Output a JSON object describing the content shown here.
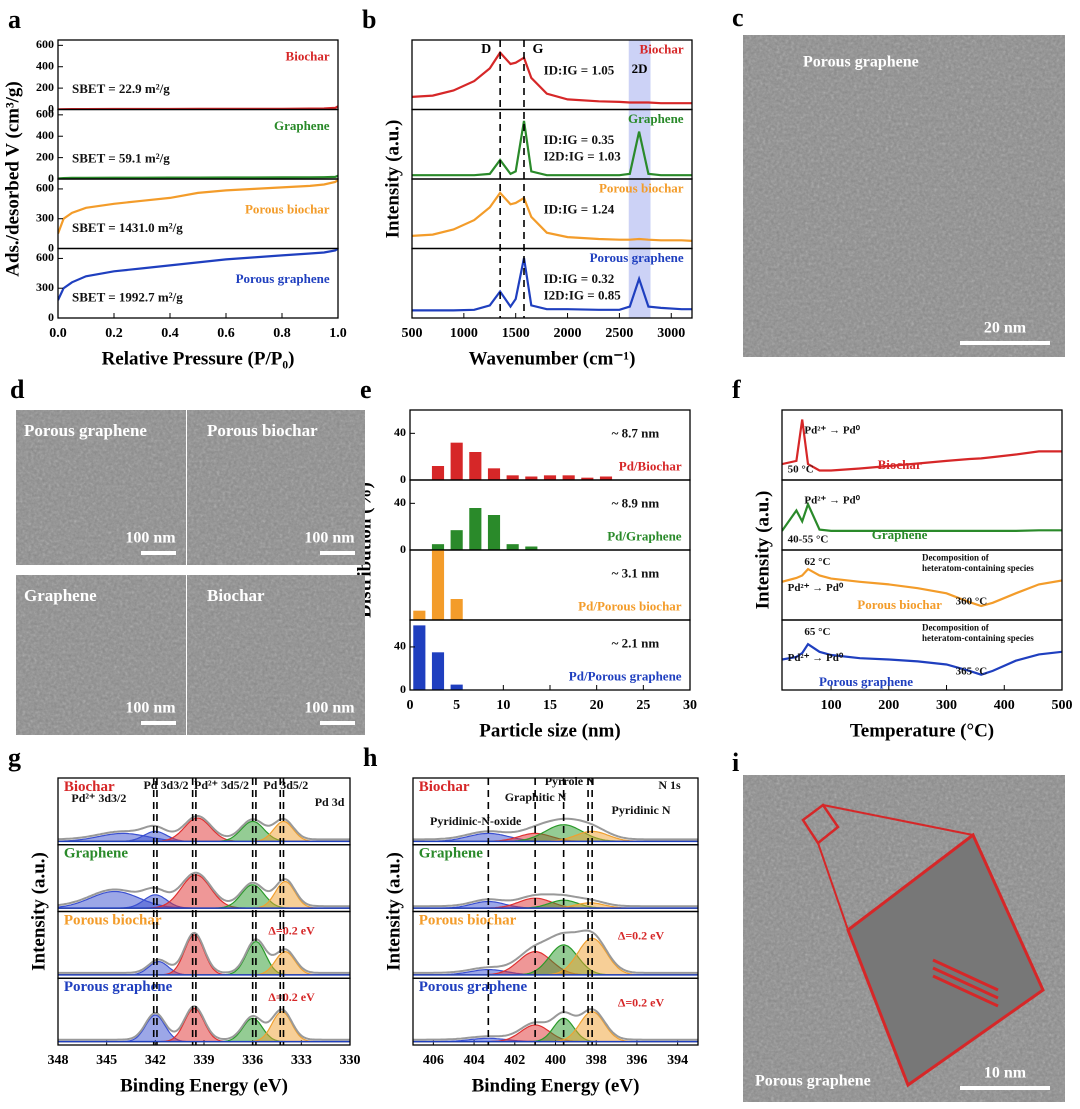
{
  "chart_data": [
    {
      "panel": "a",
      "type": "stacked-line",
      "xlabel": "Relative Pressure (P/P₀)",
      "ylabel": "Ads./desorbed V (cm³/g)",
      "xlim": [
        0,
        1
      ],
      "xticks": [
        {
          "value": 0,
          "label": "0.0"
        },
        {
          "value": 0.2,
          "label": "0.2"
        },
        {
          "value": 0.4,
          "label": "0.4"
        },
        {
          "value": 0.6,
          "label": "0.6"
        },
        {
          "value": 0.8,
          "label": "0.8"
        },
        {
          "value": 1,
          "label": "1.0"
        }
      ],
      "x": [
        0,
        0.02,
        0.05,
        0.1,
        0.2,
        0.3,
        0.4,
        0.5,
        0.6,
        0.7,
        0.8,
        0.9,
        0.95,
        0.99,
        1.0
      ],
      "subplots": [
        {
          "name": "Biochar",
          "color": "#d62728",
          "ylim": [
            0,
            650
          ],
          "yticks": [
            0,
            200,
            400,
            600
          ],
          "values": [
            2,
            3,
            4,
            4,
            5,
            5,
            5,
            6,
            6,
            6,
            7,
            8,
            9,
            15,
            30
          ],
          "notes": [
            "SBET = 22.9 m²/g"
          ]
        },
        {
          "name": "Graphene",
          "color": "#2a8a2a",
          "ylim": [
            0,
            650
          ],
          "yticks": [
            0,
            200,
            400,
            600
          ],
          "values": [
            5,
            8,
            10,
            11,
            12,
            12,
            13,
            13,
            14,
            14,
            15,
            16,
            17,
            20,
            30
          ],
          "notes": [
            "SBET = 59.1 m²/g"
          ]
        },
        {
          "name": "Porous biochar",
          "color": "#f39c2a",
          "ylim": [
            0,
            700
          ],
          "yticks": [
            0,
            300,
            600
          ],
          "values": [
            150,
            300,
            360,
            410,
            450,
            480,
            510,
            560,
            585,
            600,
            615,
            630,
            645,
            670,
            690
          ],
          "notes": [
            "SBET = 1431.0 m²/g"
          ]
        },
        {
          "name": "Porous graphene",
          "color": "#1f3fbf",
          "ylim": [
            0,
            700
          ],
          "yticks": [
            0,
            300,
            600
          ],
          "values": [
            180,
            300,
            360,
            420,
            470,
            500,
            530,
            560,
            590,
            610,
            630,
            650,
            660,
            680,
            700
          ],
          "notes": [
            "SBET = 1992.7 m²/g"
          ]
        }
      ]
    },
    {
      "panel": "b",
      "type": "stacked-line",
      "xlabel": "Wavenumber (cm⁻¹)",
      "ylabel": "Intensity (a.u.)",
      "xlim": [
        500,
        3200
      ],
      "xticks": [
        500,
        1000,
        1500,
        2000,
        2500,
        3000
      ],
      "ylim": [
        0,
        1.1
      ],
      "vlines": [
        1350,
        1580
      ],
      "vline_labels": [
        "D",
        "G"
      ],
      "band": [
        2590,
        2800
      ],
      "band_label": "2D",
      "x": [
        500,
        700,
        900,
        1100,
        1250,
        1350,
        1450,
        1500,
        1580,
        1650,
        1800,
        2000,
        2300,
        2500,
        2600,
        2690,
        2780,
        2900,
        3100,
        3200
      ],
      "subplots": [
        {
          "name": "Biochar",
          "color": "#d62728",
          "values": [
            0.2,
            0.22,
            0.3,
            0.45,
            0.65,
            0.9,
            0.72,
            0.74,
            0.82,
            0.5,
            0.25,
            0.16,
            0.13,
            0.12,
            0.11,
            0.11,
            0.11,
            0.1,
            0.1,
            0.1
          ],
          "notes": [
            "ID:IG = 1.05"
          ]
        },
        {
          "name": "Graphene",
          "color": "#2a8a2a",
          "values": [
            0.06,
            0.06,
            0.06,
            0.06,
            0.08,
            0.3,
            0.08,
            0.12,
            0.92,
            0.12,
            0.06,
            0.06,
            0.06,
            0.06,
            0.08,
            0.75,
            0.08,
            0.06,
            0.06,
            0.06
          ],
          "notes": [
            "ID:IG = 0.35",
            "I2D:IG = 1.03"
          ]
        },
        {
          "name": "Porous biochar",
          "color": "#f39c2a",
          "values": [
            0.2,
            0.22,
            0.3,
            0.45,
            0.65,
            0.88,
            0.7,
            0.72,
            0.8,
            0.5,
            0.25,
            0.18,
            0.15,
            0.14,
            0.14,
            0.15,
            0.14,
            0.13,
            0.13,
            0.12
          ],
          "notes": [
            "ID:IG = 1.24"
          ]
        },
        {
          "name": "Porous graphene",
          "color": "#1f3fbf",
          "values": [
            0.12,
            0.12,
            0.12,
            0.13,
            0.2,
            0.42,
            0.18,
            0.3,
            0.95,
            0.2,
            0.14,
            0.14,
            0.13,
            0.13,
            0.18,
            0.62,
            0.18,
            0.16,
            0.14,
            0.14
          ],
          "notes": [
            "ID:IG = 0.32",
            "I2D:IG = 0.85"
          ]
        }
      ]
    },
    {
      "panel": "e",
      "type": "stacked-bar",
      "xlabel": "Particle size (nm)",
      "ylabel": "Distribution (%)",
      "xlim": [
        0,
        30
      ],
      "xticks": [
        0,
        5,
        10,
        15,
        20,
        25,
        30
      ],
      "subplots": [
        {
          "name": "Pd/Biochar",
          "color": "#d62728",
          "ylim": [
            0,
            60
          ],
          "yticks": [
            0,
            40
          ],
          "x": [
            3,
            5,
            7,
            9,
            11,
            13,
            15,
            17,
            19,
            21
          ],
          "values": [
            12,
            32,
            24,
            10,
            4,
            3,
            4,
            4,
            2,
            3
          ],
          "notes": [
            "~ 8.7 nm"
          ]
        },
        {
          "name": "Pd/Graphene",
          "color": "#2a8a2a",
          "ylim": [
            0,
            60
          ],
          "yticks": [
            0,
            40
          ],
          "x": [
            3,
            5,
            7,
            9,
            11,
            13
          ],
          "values": [
            5,
            17,
            36,
            30,
            5,
            3
          ],
          "notes": [
            "~ 8.9 nm"
          ]
        },
        {
          "name": "Pd/Porous biochar",
          "color": "#f39c2a",
          "ylim": [
            0,
            60
          ],
          "x": [
            1,
            3,
            5
          ],
          "values": [
            8,
            60,
            18
          ],
          "notes": [
            "~ 3.1 nm"
          ]
        },
        {
          "name": "Pd/Porous graphene",
          "color": "#1f3fbf",
          "ylim": [
            0,
            65
          ],
          "yticks": [
            0,
            40
          ],
          "x": [
            1,
            3,
            5
          ],
          "values": [
            60,
            35,
            5
          ],
          "notes": [
            "~ 2.1 nm"
          ]
        }
      ]
    },
    {
      "panel": "f",
      "type": "stacked-line",
      "xlabel": "Temperature (°C)",
      "ylabel": "Intensity (a.u.)",
      "xlim": [
        15,
        500
      ],
      "xticks": [
        100,
        200,
        300,
        400,
        500
      ],
      "ylim": [
        0,
        1.1
      ],
      "x": [
        15,
        40,
        50,
        60,
        80,
        100,
        150,
        200,
        250,
        300,
        340,
        360,
        380,
        420,
        460,
        500
      ],
      "subplots": [
        {
          "name": "Biochar",
          "color": "#d62728",
          "values": [
            0.25,
            0.3,
            0.95,
            0.25,
            0.15,
            0.15,
            0.18,
            0.22,
            0.26,
            0.3,
            0.33,
            0.34,
            0.36,
            0.4,
            0.45,
            0.45
          ],
          "notes": [
            "Pd²⁺ → Pd⁰",
            "50 °C"
          ]
        },
        {
          "name": "Graphene",
          "color": "#2a8a2a",
          "values": [
            0.3,
            0.62,
            0.45,
            0.72,
            0.32,
            0.3,
            0.3,
            0.3,
            0.3,
            0.3,
            0.3,
            0.3,
            0.3,
            0.3,
            0.31,
            0.31
          ],
          "notes": [
            "Pd²⁺ → Pd⁰",
            "40-55 °C"
          ]
        },
        {
          "name": "Porous biochar",
          "color": "#f39c2a",
          "values": [
            0.6,
            0.66,
            0.7,
            0.8,
            0.7,
            0.65,
            0.6,
            0.56,
            0.5,
            0.42,
            0.28,
            0.22,
            0.27,
            0.42,
            0.56,
            0.62
          ],
          "notes": [
            "62 °C",
            "Decomposition of",
            "heteratom-containing species",
            "Pd²⁺ → Pd⁰",
            "360 °C"
          ]
        },
        {
          "name": "Porous graphene",
          "color": "#1f3fbf",
          "values": [
            0.48,
            0.52,
            0.58,
            0.72,
            0.6,
            0.55,
            0.5,
            0.48,
            0.45,
            0.4,
            0.3,
            0.24,
            0.3,
            0.46,
            0.56,
            0.6
          ],
          "notes": [
            "65 °C",
            "Decomposition of",
            "heteratom-containing species",
            "Pd²⁺ → Pd⁰",
            "365 °C"
          ]
        }
      ]
    },
    {
      "panel": "g",
      "type": "xps",
      "xlabel": "Binding Energy (eV)",
      "ylabel": "Intensity (a.u.)",
      "xlim": [
        348,
        330
      ],
      "xticks": [
        348,
        345,
        342,
        339,
        336,
        333,
        330
      ],
      "ylim": [
        0,
        1
      ],
      "vlines": [
        342.1,
        341.9,
        339.7,
        339.5,
        336.0,
        335.8,
        334.3,
        334.1
      ],
      "subplots": [
        {
          "name": "Biochar",
          "color": "#d62728",
          "notes": [
            "Pd²⁺ 3d3/2",
            "Pd 3d3/2",
            "Pd²⁺ 3d5/2",
            "Pd 3d5/2",
            "Pd 3d"
          ],
          "peaks": [
            {
              "center": 344,
              "height": 0.12,
              "width": 1.5,
              "color": "#3a4fd0"
            },
            {
              "center": 342,
              "height": 0.15,
              "width": 0.7,
              "color": "#3a4fd0"
            },
            {
              "center": 339.4,
              "height": 0.35,
              "width": 0.8,
              "color": "#e03030"
            },
            {
              "center": 336,
              "height": 0.3,
              "width": 0.7,
              "color": "#2a9a2a"
            },
            {
              "center": 334.1,
              "height": 0.3,
              "width": 0.6,
              "color": "#f0a030"
            }
          ]
        },
        {
          "name": "Graphene",
          "color": "#2a8a2a",
          "notes": [],
          "peaks": [
            {
              "center": 344.5,
              "height": 0.25,
              "width": 1.5,
              "color": "#3a4fd0"
            },
            {
              "center": 342,
              "height": 0.2,
              "width": 0.7,
              "color": "#3a4fd0"
            },
            {
              "center": 339.5,
              "height": 0.5,
              "width": 0.9,
              "color": "#e03030"
            },
            {
              "center": 336,
              "height": 0.35,
              "width": 0.7,
              "color": "#2a9a2a"
            },
            {
              "center": 334,
              "height": 0.4,
              "width": 0.6,
              "color": "#f0a030"
            }
          ]
        },
        {
          "name": "Porous biochar",
          "color": "#f39c2a",
          "notes": [
            "Δ=0.2 eV"
          ],
          "peaks": [
            {
              "center": 341.8,
              "height": 0.2,
              "width": 0.6,
              "color": "#3a4fd0"
            },
            {
              "center": 339.6,
              "height": 0.6,
              "width": 0.6,
              "color": "#e03030"
            },
            {
              "center": 335.8,
              "height": 0.5,
              "width": 0.6,
              "color": "#2a9a2a"
            },
            {
              "center": 334,
              "height": 0.35,
              "width": 0.6,
              "color": "#f0a030"
            }
          ]
        },
        {
          "name": "Porous graphene",
          "color": "#1f3fbf",
          "notes": [
            "Δ=0.2 eV"
          ],
          "peaks": [
            {
              "center": 342,
              "height": 0.4,
              "width": 0.6,
              "color": "#3a4fd0"
            },
            {
              "center": 339.6,
              "height": 0.5,
              "width": 0.6,
              "color": "#e03030"
            },
            {
              "center": 336,
              "height": 0.35,
              "width": 0.6,
              "color": "#2a9a2a"
            },
            {
              "center": 334.2,
              "height": 0.45,
              "width": 0.6,
              "color": "#f0a030"
            }
          ]
        }
      ]
    },
    {
      "panel": "h",
      "type": "xps",
      "xlabel": "Binding Energy (eV)",
      "ylabel": "Intensity (a.u.)",
      "xlim": [
        407,
        393
      ],
      "xticks": [
        406,
        404,
        402,
        400,
        398,
        396,
        394
      ],
      "ylim": [
        0,
        1
      ],
      "vlines": [
        403.3,
        401,
        399.6,
        398.4,
        398.2
      ],
      "subplots": [
        {
          "name": "Biochar",
          "color": "#d62728",
          "notes": [
            "N 1s",
            "Pyrrole N",
            "Graphitic N",
            "Pyridinic-N-oxide",
            "Pyridinic N"
          ],
          "peaks": [
            {
              "center": 403.3,
              "height": 0.12,
              "width": 1,
              "color": "#3a4fd0"
            },
            {
              "center": 401,
              "height": 0.12,
              "width": 0.8,
              "color": "#e03030"
            },
            {
              "center": 399.6,
              "height": 0.25,
              "width": 0.9,
              "color": "#2a9a2a"
            },
            {
              "center": 398.2,
              "height": 0.15,
              "width": 0.8,
              "color": "#f0a030"
            }
          ]
        },
        {
          "name": "Graphene",
          "color": "#2a8a2a",
          "notes": [],
          "peaks": [
            {
              "center": 403.3,
              "height": 0.1,
              "width": 0.8,
              "color": "#3a4fd0"
            },
            {
              "center": 401,
              "height": 0.15,
              "width": 0.8,
              "color": "#e03030"
            },
            {
              "center": 399.6,
              "height": 0.12,
              "width": 0.7,
              "color": "#2a9a2a"
            },
            {
              "center": 398.3,
              "height": 0.08,
              "width": 0.7,
              "color": "#f0a030"
            }
          ]
        },
        {
          "name": "Porous biochar",
          "color": "#f39c2a",
          "notes": [
            "Δ=0.2 eV"
          ],
          "peaks": [
            {
              "center": 403.3,
              "height": 0.08,
              "width": 0.9,
              "color": "#3a4fd0"
            },
            {
              "center": 401,
              "height": 0.35,
              "width": 0.8,
              "color": "#e03030"
            },
            {
              "center": 399.6,
              "height": 0.45,
              "width": 0.7,
              "color": "#2a9a2a"
            },
            {
              "center": 398.2,
              "height": 0.55,
              "width": 0.7,
              "color": "#f0a030"
            }
          ]
        },
        {
          "name": "Porous graphene",
          "color": "#1f3fbf",
          "notes": [
            "Δ=0.2 eV"
          ],
          "peaks": [
            {
              "center": 403.3,
              "height": 0.05,
              "width": 0.9,
              "color": "#3a4fd0"
            },
            {
              "center": 401,
              "height": 0.25,
              "width": 0.7,
              "color": "#e03030"
            },
            {
              "center": 399.6,
              "height": 0.35,
              "width": 0.5,
              "color": "#2a9a2a"
            },
            {
              "center": 398.2,
              "height": 0.45,
              "width": 0.6,
              "color": "#f0a030"
            }
          ]
        }
      ]
    }
  ],
  "images": [
    {
      "panel": "c",
      "tiles": [
        {
          "label": "Porous graphene",
          "scale": "20 nm"
        }
      ]
    },
    {
      "panel": "d",
      "tiles": [
        {
          "label": "Porous graphene",
          "scale": "100 nm"
        },
        {
          "label": "Porous biochar",
          "scale": "100 nm"
        },
        {
          "label": "Graphene",
          "scale": "100 nm"
        },
        {
          "label": "Biochar",
          "scale": "100 nm"
        }
      ]
    },
    {
      "panel": "i",
      "tiles": [
        {
          "label": "Porous graphene",
          "scale": "10 nm"
        }
      ]
    }
  ]
}
